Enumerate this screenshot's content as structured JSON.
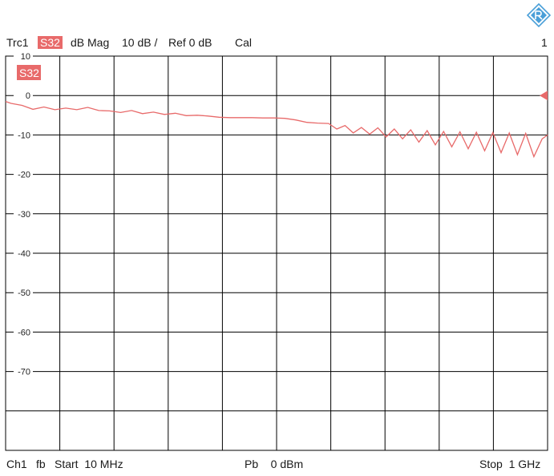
{
  "header": {
    "trace": "Trc1",
    "param": "S32",
    "format": "dB Mag",
    "scale": "10 dB /",
    "ref": "Ref 0 dB",
    "cal": "Cal",
    "channel_index": "1"
  },
  "footer": {
    "channel": "Ch1",
    "fb": "fb",
    "start": "Start  10 MHz",
    "power": "Pb    0 dBm",
    "stop": "Stop  1 GHz"
  },
  "colors": {
    "trace": "#e86a6a",
    "grid": "#000000",
    "logo": "#4a9fd8"
  },
  "chart_data": {
    "type": "line",
    "trace_label": "S32",
    "x": [
      10,
      20,
      40,
      60,
      80,
      100,
      120,
      140,
      160,
      180,
      200,
      220,
      240,
      260,
      280,
      300,
      320,
      340,
      360,
      380,
      400,
      420,
      440,
      460,
      480,
      500,
      520,
      540,
      560,
      580,
      600,
      615,
      630,
      645,
      660,
      675,
      690,
      705,
      720,
      735,
      750,
      765,
      780,
      795,
      810,
      825,
      840,
      855,
      870,
      885,
      900,
      915,
      930,
      945,
      960,
      975,
      990,
      1000
    ],
    "y": [
      -1.5,
      -2.0,
      -2.5,
      -3.5,
      -2.9,
      -3.6,
      -3.2,
      -3.6,
      -3.0,
      -3.8,
      -3.9,
      -4.3,
      -3.8,
      -4.6,
      -4.2,
      -4.8,
      -4.5,
      -5.1,
      -5.0,
      -5.2,
      -5.5,
      -5.6,
      -5.6,
      -5.6,
      -5.7,
      -5.7,
      -5.8,
      -6.2,
      -6.8,
      -7.0,
      -7.1,
      -8.5,
      -7.6,
      -9.5,
      -8.1,
      -9.8,
      -8.2,
      -10.5,
      -8.5,
      -11.0,
      -8.7,
      -11.8,
      -8.9,
      -12.5,
      -9.1,
      -13.0,
      -9.2,
      -13.5,
      -9.3,
      -14.0,
      -9.4,
      -14.5,
      -9.5,
      -15.0,
      -9.6,
      -15.5,
      -11.0,
      -10.0
    ],
    "x_unit": "MHz",
    "ylim": [
      -90,
      10
    ],
    "y_ticks": [
      10,
      0,
      -10,
      -20,
      -30,
      -40,
      -50,
      -60,
      -70
    ],
    "y_tick_labels": [
      "10",
      "0",
      "-10",
      "-20",
      "-30",
      "-40",
      "-50",
      "-60",
      "-70"
    ],
    "x_divisions": 10,
    "ref_level": 0,
    "grid": true
  }
}
